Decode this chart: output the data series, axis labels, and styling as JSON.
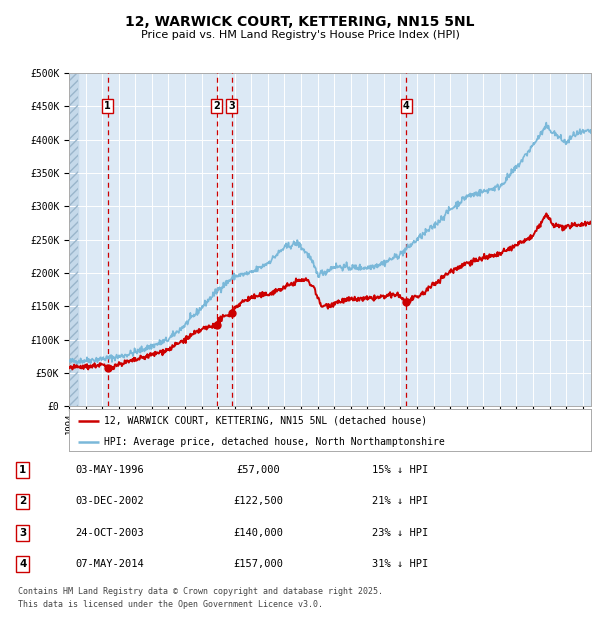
{
  "title": "12, WARWICK COURT, KETTERING, NN15 5NL",
  "subtitle": "Price paid vs. HM Land Registry's House Price Index (HPI)",
  "plot_bg_color": "#dce9f5",
  "hpi_line_color": "#7ab8d9",
  "price_line_color": "#cc0000",
  "marker_color": "#cc0000",
  "vline_color": "#cc0000",
  "grid_color": "#ffffff",
  "yticks": [
    0,
    50000,
    100000,
    150000,
    200000,
    250000,
    300000,
    350000,
    400000,
    450000,
    500000
  ],
  "ytick_labels": [
    "£0",
    "£50K",
    "£100K",
    "£150K",
    "£200K",
    "£250K",
    "£300K",
    "£350K",
    "£400K",
    "£450K",
    "£500K"
  ],
  "xmin": 1994.0,
  "xmax": 2025.5,
  "ymin": 0,
  "ymax": 500000,
  "transactions": [
    {
      "num": 1,
      "date": "03-MAY-1996",
      "year": 1996.34,
      "price": 57000,
      "pct": "15%",
      "dir": "↓"
    },
    {
      "num": 2,
      "date": "03-DEC-2002",
      "year": 2002.92,
      "price": 122500,
      "pct": "21%",
      "dir": "↓"
    },
    {
      "num": 3,
      "date": "24-OCT-2003",
      "year": 2003.81,
      "price": 140000,
      "pct": "23%",
      "dir": "↓"
    },
    {
      "num": 4,
      "date": "07-MAY-2014",
      "year": 2014.34,
      "price": 157000,
      "pct": "31%",
      "dir": "↓"
    }
  ],
  "legend_line1": "12, WARWICK COURT, KETTERING, NN15 5NL (detached house)",
  "legend_line2": "HPI: Average price, detached house, North Northamptonshire",
  "footer_line1": "Contains HM Land Registry data © Crown copyright and database right 2025.",
  "footer_line2": "This data is licensed under the Open Government Licence v3.0.",
  "xtick_years": [
    1994,
    1995,
    1996,
    1997,
    1998,
    1999,
    2000,
    2001,
    2002,
    2003,
    2004,
    2005,
    2006,
    2007,
    2008,
    2009,
    2010,
    2011,
    2012,
    2013,
    2014,
    2015,
    2016,
    2017,
    2018,
    2019,
    2020,
    2021,
    2022,
    2023,
    2024,
    2025
  ]
}
